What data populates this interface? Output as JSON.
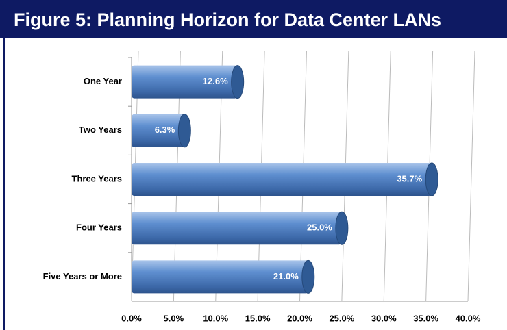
{
  "chart_data": {
    "type": "bar",
    "orientation": "horizontal",
    "title": "Figure 5:  Planning Horizon for Data Center LANs",
    "categories": [
      "One Year",
      "Two Years",
      "Three Years",
      "Four Years",
      "Five Years or More"
    ],
    "values": [
      12.6,
      6.3,
      35.7,
      25.0,
      21.0
    ],
    "value_labels": [
      "12.6%",
      "6.3%",
      "35.7%",
      "25.0%",
      "21.0%"
    ],
    "color": "#4f81bd",
    "xlim": [
      0,
      40
    ],
    "xticks": [
      {
        "value": 0,
        "label": "0.0%"
      },
      {
        "value": 5,
        "label": "5.0%"
      },
      {
        "value": 10,
        "label": "10.0%"
      },
      {
        "value": 15,
        "label": "15.0%"
      },
      {
        "value": 20,
        "label": "20.0%"
      },
      {
        "value": 25,
        "label": "25.0%"
      },
      {
        "value": 30,
        "label": "30.0%"
      },
      {
        "value": 35,
        "label": "35.0%"
      },
      {
        "value": 40,
        "label": "40.0%"
      }
    ],
    "grid": true
  }
}
